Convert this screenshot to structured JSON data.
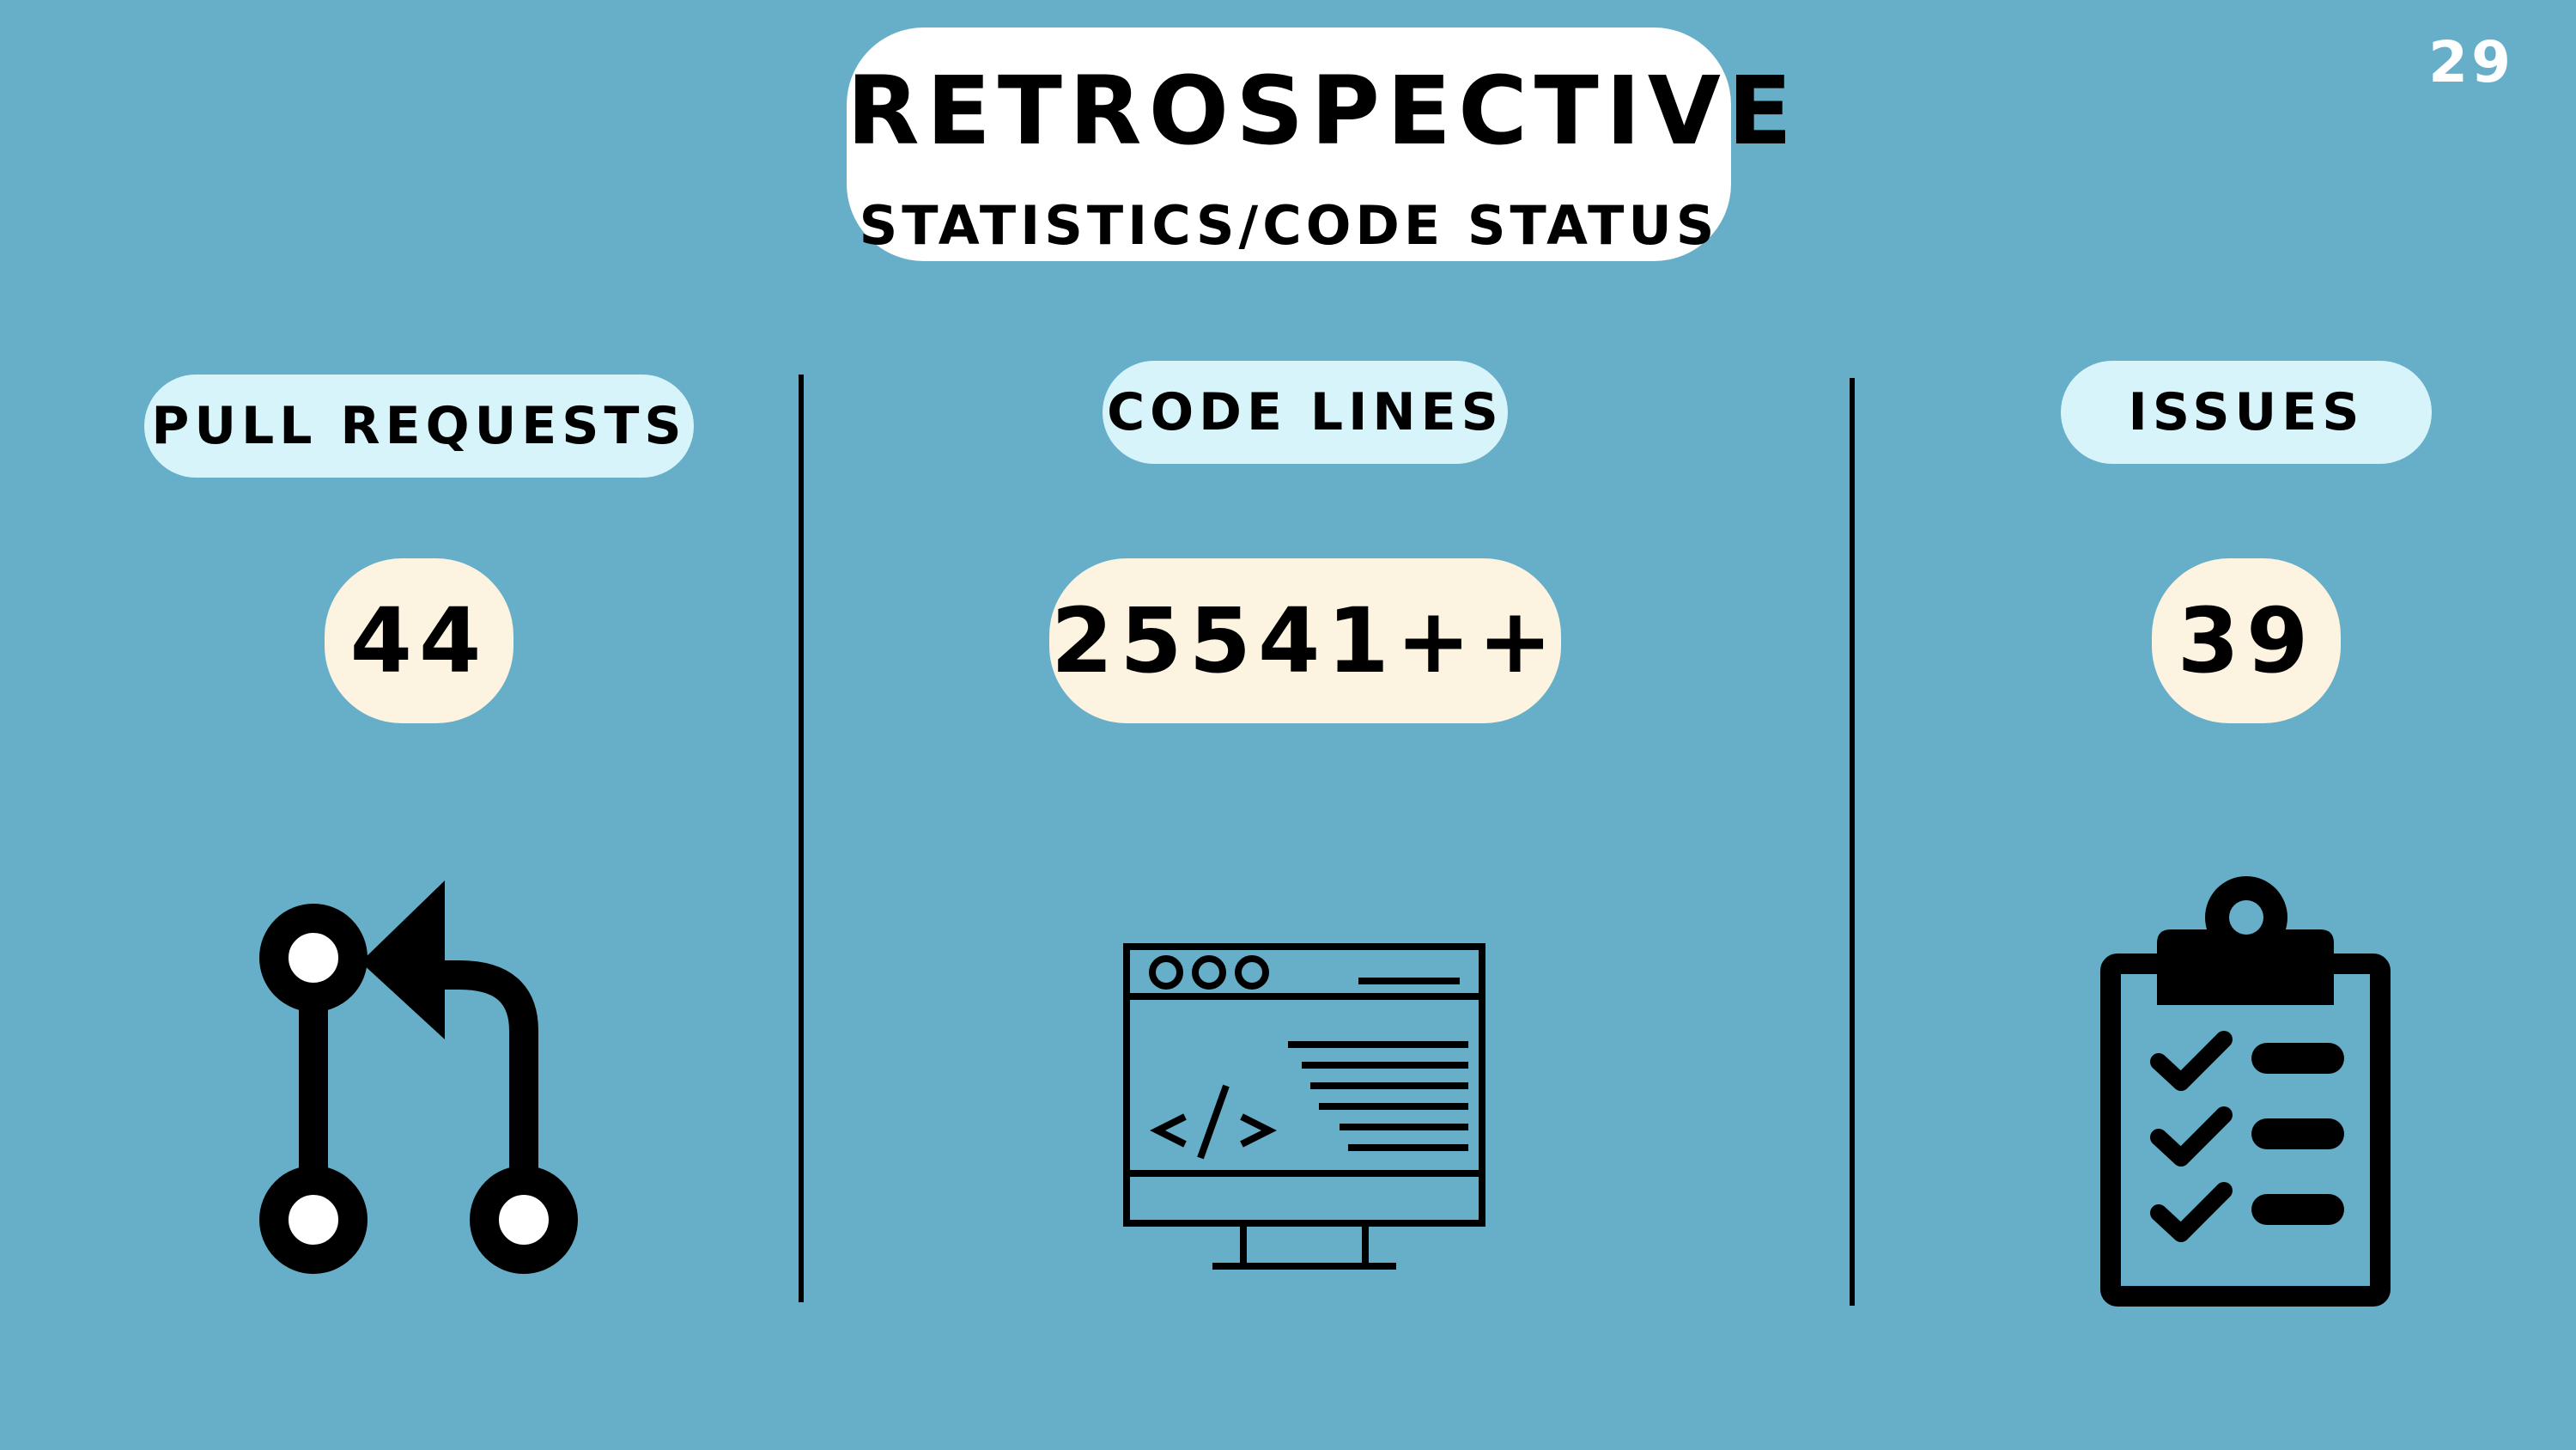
{
  "slide": {
    "title": "RETROSPECTIVE",
    "subtitle": "STATISTICS/CODE STATUS",
    "page_number": "29"
  },
  "stats": [
    {
      "label": "PULL REQUESTS",
      "value": "44",
      "icon": "pull-request-icon"
    },
    {
      "label": "CODE LINES",
      "value": "25541++",
      "icon": "code-monitor-icon"
    },
    {
      "label": "ISSUES",
      "value": "39",
      "icon": "clipboard-checklist-icon"
    }
  ],
  "colors": {
    "background": "#67afc8",
    "title_box": "#ffffff",
    "label_pill": "#d8f4fb",
    "value_pill": "#fdf3e1",
    "page_number": "#ffffff"
  }
}
